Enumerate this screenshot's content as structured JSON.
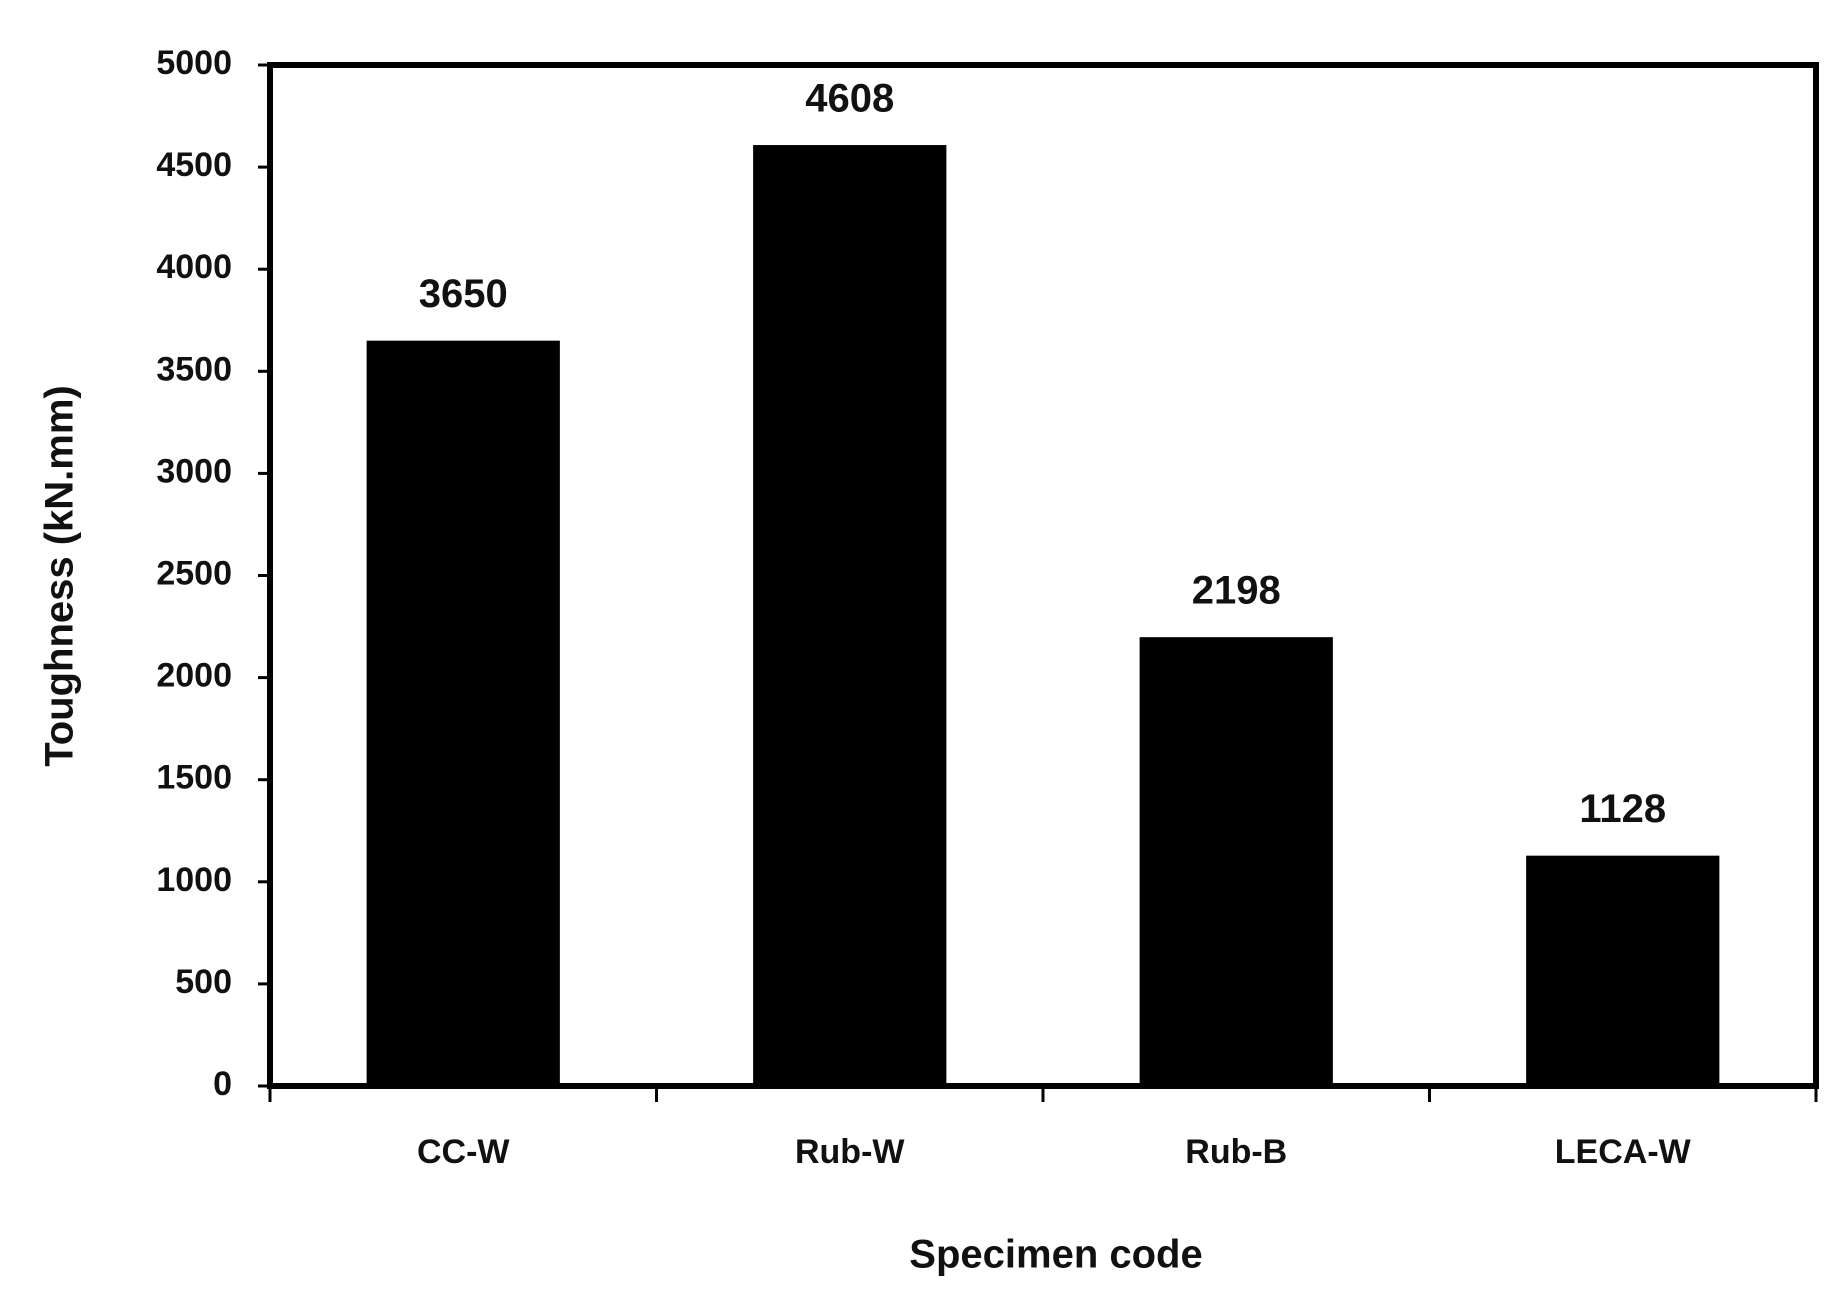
{
  "chart_data": {
    "type": "bar",
    "x_label": "Specimen code",
    "y_label": "Toughness (kN.mm)",
    "categories": [
      "CC-W",
      "Rub-W",
      "Rub-B",
      "LECA-W"
    ],
    "values": [
      3650,
      4608,
      2198,
      1128
    ],
    "color": "#000000",
    "ylim": [
      0,
      5000
    ],
    "yticks": [
      0,
      500,
      1000,
      1500,
      2000,
      2500,
      3000,
      3500,
      4000,
      4500,
      5000
    ],
    "grid": false
  }
}
